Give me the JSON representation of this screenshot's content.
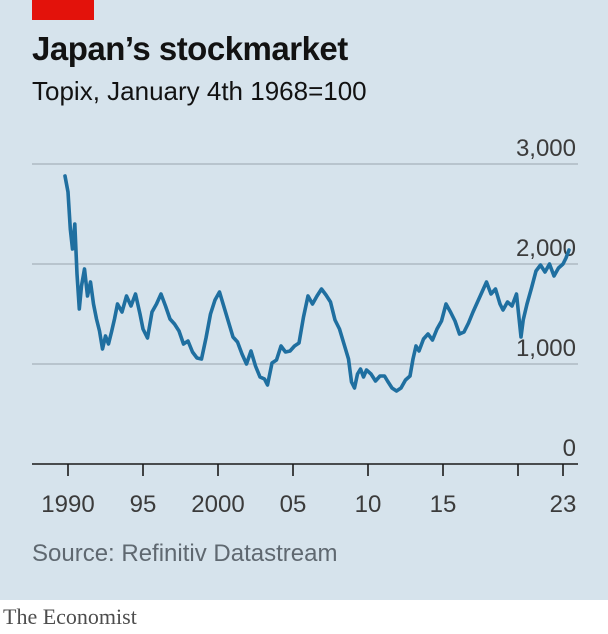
{
  "header": {
    "title": "Japan’s stockmarket",
    "subtitle": "Topix, January 4th 1968=100"
  },
  "footer": {
    "source": "Source: Refinitiv Datastream",
    "publisher": "The Economist"
  },
  "colors": {
    "background": "#d6e3ec",
    "line": "#1f6fa0",
    "accent_tag": "#e3120b"
  },
  "chart_data": {
    "type": "line",
    "title": "Japan’s stockmarket",
    "subtitle": "Topix, January 4th 1968=100",
    "xlabel": "",
    "ylabel": "",
    "xlim": [
      1987.6,
      2024.0
    ],
    "ylim": [
      0,
      3000
    ],
    "yticks": [
      0,
      1000,
      2000,
      3000
    ],
    "ytick_labels": [
      "0",
      "1,000",
      "2,000",
      "3,000"
    ],
    "xticks": [
      1990,
      1995,
      2000,
      2005,
      2010,
      2015,
      2020,
      2023
    ],
    "xtick_labels": [
      "1990",
      "95",
      "2000",
      "05",
      "10",
      "15",
      "",
      "23"
    ],
    "grid": "horizontal",
    "legend": "none",
    "series": [
      {
        "x": [
          1989.8,
          1990.0,
          1990.15,
          1990.3,
          1990.45,
          1990.6,
          1990.75,
          1990.9,
          1991.1,
          1991.3,
          1991.5,
          1991.7,
          1991.9,
          1992.1,
          1992.3,
          1992.5,
          1992.7,
          1992.9,
          1993.1,
          1993.3,
          1993.6,
          1993.9,
          1994.2,
          1994.5,
          1994.8,
          1995.0,
          1995.3,
          1995.6,
          1995.9,
          1996.2,
          1996.5,
          1996.8,
          1997.1,
          1997.4,
          1997.7,
          1998.0,
          1998.3,
          1998.6,
          1998.9,
          1999.2,
          1999.5,
          1999.8,
          2000.1,
          2000.4,
          2000.7,
          2001.0,
          2001.3,
          2001.6,
          2001.9,
          2002.2,
          2002.5,
          2002.8,
          2003.1,
          2003.3,
          2003.6,
          2003.9,
          2004.2,
          2004.5,
          2004.8,
          2005.1,
          2005.4,
          2005.7,
          2006.0,
          2006.3,
          2006.6,
          2006.9,
          2007.2,
          2007.5,
          2007.8,
          2008.1,
          2008.4,
          2008.7,
          2008.9,
          2009.1,
          2009.3,
          2009.5,
          2009.7,
          2009.9,
          2010.2,
          2010.5,
          2010.8,
          2011.1,
          2011.3,
          2011.6,
          2011.9,
          2012.2,
          2012.5,
          2012.8,
          2013.0,
          2013.2,
          2013.4,
          2013.7,
          2014.0,
          2014.3,
          2014.6,
          2014.9,
          2015.2,
          2015.5,
          2015.8,
          2016.1,
          2016.4,
          2016.7,
          2017.0,
          2017.3,
          2017.6,
          2017.9,
          2018.2,
          2018.5,
          2018.8,
          2019.0,
          2019.3,
          2019.6,
          2019.9,
          2020.2,
          2020.35,
          2020.6,
          2020.9,
          2021.2,
          2021.5,
          2021.8,
          2022.1,
          2022.4,
          2022.7,
          2023.0,
          2023.2,
          2023.4
        ],
        "values": [
          2880,
          2720,
          2350,
          2150,
          2400,
          1900,
          1550,
          1780,
          1950,
          1680,
          1820,
          1600,
          1450,
          1330,
          1150,
          1280,
          1200,
          1320,
          1450,
          1600,
          1520,
          1680,
          1580,
          1700,
          1500,
          1350,
          1260,
          1520,
          1600,
          1700,
          1580,
          1450,
          1400,
          1330,
          1200,
          1230,
          1120,
          1060,
          1050,
          1260,
          1500,
          1640,
          1720,
          1570,
          1420,
          1270,
          1220,
          1100,
          1000,
          1130,
          980,
          870,
          850,
          790,
          1010,
          1040,
          1180,
          1120,
          1130,
          1180,
          1210,
          1470,
          1680,
          1600,
          1680,
          1750,
          1690,
          1620,
          1440,
          1350,
          1200,
          1050,
          820,
          760,
          900,
          950,
          870,
          940,
          900,
          830,
          880,
          880,
          830,
          760,
          730,
          760,
          840,
          880,
          1050,
          1180,
          1130,
          1250,
          1300,
          1240,
          1350,
          1430,
          1600,
          1520,
          1430,
          1300,
          1320,
          1410,
          1520,
          1620,
          1720,
          1820,
          1700,
          1750,
          1600,
          1540,
          1620,
          1580,
          1700,
          1270,
          1440,
          1600,
          1760,
          1930,
          1990,
          1920,
          2000,
          1880,
          1960,
          2000,
          2060,
          2140
        ]
      }
    ]
  }
}
